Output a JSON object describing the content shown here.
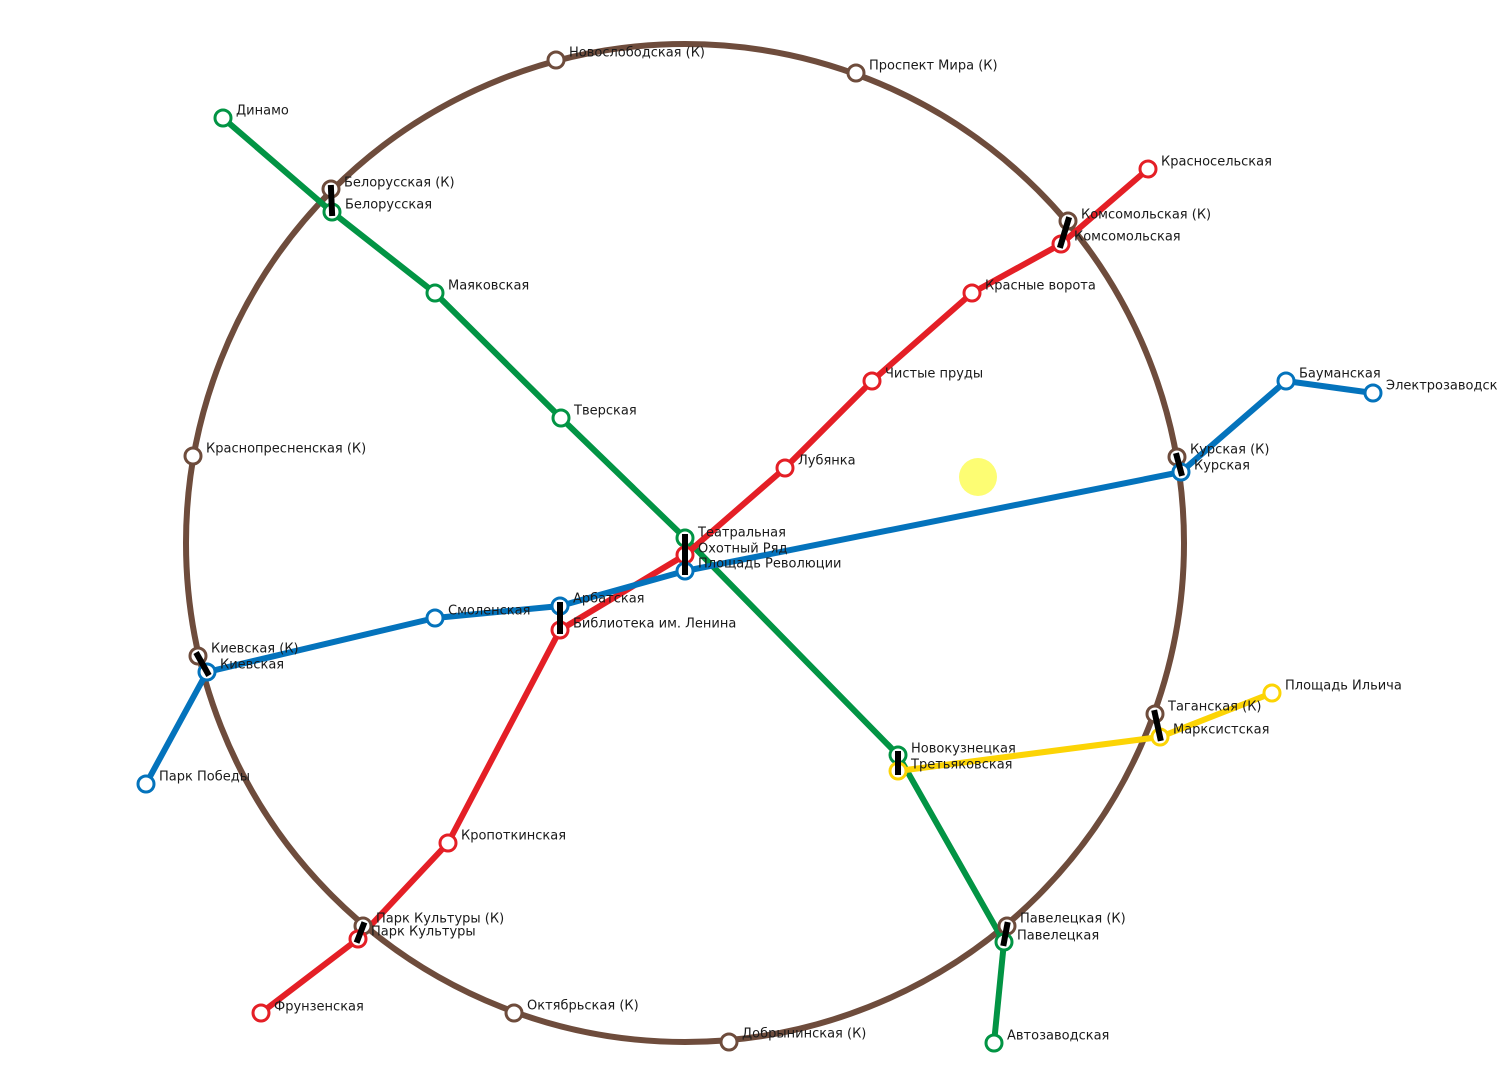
{
  "colors": {
    "ring": "#6e4c3c",
    "red": "#e41f26",
    "green": "#029444",
    "blue": "#0473bc",
    "yellow": "#fcd405",
    "cursor": "#fdfd64"
  },
  "ring_label_suffix": "(К)",
  "lines": [
    {
      "id": "green",
      "color_key": "green",
      "stations": [
        "dinamo",
        "belorusskaya",
        "mayakovskaya",
        "tverskaya",
        "teatralnaya",
        "novokuznetskaya",
        "paveletskaya",
        "avtozavodskaya"
      ]
    },
    {
      "id": "red",
      "color_key": "red",
      "stations": [
        "krasnoselskaya",
        "komsomolskaya",
        "krasnye_vorota",
        "chistye_prudy",
        "lubyanka",
        "okhotny_ryad",
        "biblioteka_lenina",
        "kropotkinskaya",
        "park_kultury",
        "frunzenskaya"
      ]
    },
    {
      "id": "blue",
      "color_key": "blue",
      "stations": [
        "elektrozavodskaya",
        "baumanskaya",
        "kurskaya",
        "ploshchad_revolyutsii",
        "arbatskaya",
        "smolenskaya",
        "kievskaya",
        "park_pobedy"
      ]
    },
    {
      "id": "yellow",
      "color_key": "yellow",
      "stations": [
        "ploshchad_ilicha",
        "marksistskaya",
        "tretyakovskaya"
      ]
    }
  ],
  "stations": [
    {
      "id": "novoslobodskaya_k",
      "label": "Новослободская (К)",
      "line": "ring"
    },
    {
      "id": "prospekt_mira_k",
      "label": "Проспект Мира (К)",
      "line": "ring"
    },
    {
      "id": "belorusskaya_k",
      "label": "Белорусская (К)",
      "line": "ring"
    },
    {
      "id": "komsomolskaya_k",
      "label": "Комсомольская (К)",
      "line": "ring"
    },
    {
      "id": "krasnopresnenskaya_k",
      "label": "Краснопресненская (К)",
      "line": "ring"
    },
    {
      "id": "kurskaya_k",
      "label": "Курская (К)",
      "line": "ring"
    },
    {
      "id": "kievskaya_k",
      "label": "Киевская (К)",
      "line": "ring"
    },
    {
      "id": "taganskaya_k",
      "label": "Таганская (К)",
      "line": "ring"
    },
    {
      "id": "park_kultury_k",
      "label": "Парк Культуры (К)",
      "line": "ring"
    },
    {
      "id": "paveletskaya_k",
      "label": "Павелецкая (К)",
      "line": "ring"
    },
    {
      "id": "oktyabrskaya_k",
      "label": "Октябрьская (К)",
      "line": "ring"
    },
    {
      "id": "dobryninskaya_k",
      "label": "Добрынинская (К)",
      "line": "ring"
    },
    {
      "id": "dinamo",
      "label": "Динамо",
      "line": "green"
    },
    {
      "id": "belorusskaya",
      "label": "Белорусская",
      "line": "green"
    },
    {
      "id": "mayakovskaya",
      "label": "Маяковская",
      "line": "green"
    },
    {
      "id": "tverskaya",
      "label": "Тверская",
      "line": "green"
    },
    {
      "id": "teatralnaya",
      "label": "Театральная",
      "line": "green"
    },
    {
      "id": "novokuznetskaya",
      "label": "Новокузнецкая",
      "line": "green"
    },
    {
      "id": "paveletskaya",
      "label": "Павелецкая",
      "line": "green"
    },
    {
      "id": "avtozavodskaya",
      "label": "Автозаводская",
      "line": "green"
    },
    {
      "id": "krasnoselskaya",
      "label": "Красносельская",
      "line": "red"
    },
    {
      "id": "komsomolskaya",
      "label": "Комсомольская",
      "line": "red"
    },
    {
      "id": "krasnye_vorota",
      "label": "Красные ворота",
      "line": "red"
    },
    {
      "id": "chistye_prudy",
      "label": "Чистые пруды",
      "line": "red"
    },
    {
      "id": "lubyanka",
      "label": "Лубянка",
      "line": "red"
    },
    {
      "id": "okhotny_ryad",
      "label": "Охотный Ряд",
      "line": "red"
    },
    {
      "id": "biblioteka_lenina",
      "label": "Библиотека им. Ленина",
      "line": "red"
    },
    {
      "id": "kropotkinskaya",
      "label": "Кропоткинская",
      "line": "red"
    },
    {
      "id": "park_kultury",
      "label": "Парк Культуры",
      "line": "red"
    },
    {
      "id": "frunzenskaya",
      "label": "Фрунзенская",
      "line": "red"
    },
    {
      "id": "elektrozavodskaya",
      "label": "Электрозаводская",
      "line": "blue"
    },
    {
      "id": "baumanskaya",
      "label": "Бауманская",
      "line": "blue"
    },
    {
      "id": "kurskaya",
      "label": "Курская",
      "line": "blue"
    },
    {
      "id": "ploshchad_revolyutsii",
      "label": "Площадь Революции",
      "line": "blue"
    },
    {
      "id": "arbatskaya",
      "label": "Арбатская",
      "line": "blue"
    },
    {
      "id": "smolenskaya",
      "label": "Смоленская",
      "line": "blue"
    },
    {
      "id": "kievskaya",
      "label": "Киевская",
      "line": "blue"
    },
    {
      "id": "park_pobedy",
      "label": "Парк Победы",
      "line": "blue"
    },
    {
      "id": "ploshchad_ilicha",
      "label": "Площадь Ильича",
      "line": "yellow"
    },
    {
      "id": "marksistskaya",
      "label": "Марксистская",
      "line": "yellow"
    },
    {
      "id": "tretyakovskaya",
      "label": "Третьяковская",
      "line": "yellow"
    }
  ],
  "transfers": [
    [
      "belorusskaya_k",
      "belorusskaya"
    ],
    [
      "komsomolskaya_k",
      "komsomolskaya"
    ],
    [
      "kurskaya_k",
      "kurskaya"
    ],
    [
      "kievskaya_k",
      "kievskaya"
    ],
    [
      "taganskaya_k",
      "marksistskaya"
    ],
    [
      "park_kultury_k",
      "park_kultury"
    ],
    [
      "paveletskaya_k",
      "paveletskaya"
    ],
    [
      "novokuznetskaya",
      "tretyakovskaya"
    ],
    [
      "teatralnaya",
      "ploshchad_revolyutsii"
    ],
    [
      "arbatskaya",
      "biblioteka_lenina"
    ]
  ]
}
